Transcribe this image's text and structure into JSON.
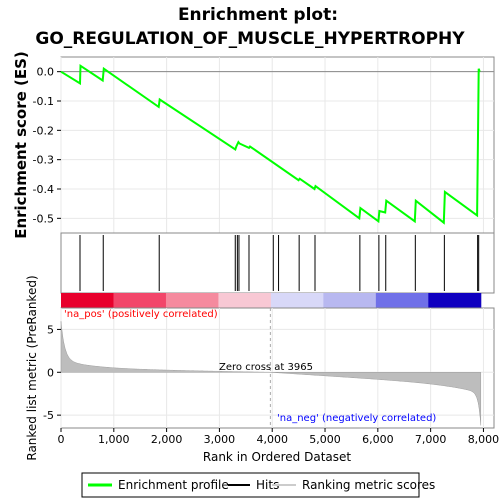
{
  "chart_data": {
    "type": "line",
    "title_line1": "Enrichment plot:",
    "title_line2": "GO_REGULATION_OF_MUSCLE_HYPERTROPHY",
    "es_panel": {
      "ylabel": "Enrichment score (ES)",
      "ylim": [
        -0.55,
        0.05
      ],
      "yticks": [
        0.0,
        -0.1,
        -0.2,
        -0.3,
        -0.4,
        -0.5
      ],
      "ytick_labels": [
        "0.0",
        "-0.1",
        "-0.2",
        "-0.3",
        "-0.4",
        "-0.5"
      ],
      "series_name": "Enrichment profile",
      "color": "#00ff00",
      "x": [
        0,
        360,
        370,
        790,
        810,
        1850,
        1870,
        3300,
        3320,
        3360,
        3380,
        3560,
        3580,
        4500,
        4520,
        4800,
        4820,
        5650,
        5670,
        6010,
        6030,
        6140,
        6160,
        6700,
        6720,
        7250,
        7270,
        7880,
        7895,
        7910,
        7930
      ],
      "y": [
        0.0,
        -0.04,
        0.02,
        -0.03,
        0.01,
        -0.12,
        -0.095,
        -0.265,
        -0.255,
        -0.24,
        -0.245,
        -0.26,
        -0.255,
        -0.37,
        -0.365,
        -0.4,
        -0.39,
        -0.5,
        -0.465,
        -0.51,
        -0.475,
        -0.48,
        -0.44,
        -0.51,
        -0.44,
        -0.515,
        -0.41,
        -0.49,
        -0.25,
        0.01,
        0.0
      ]
    },
    "hits": [
      360,
      800,
      1860,
      3300,
      3340,
      3370,
      3560,
      4020,
      4120,
      4510,
      4810,
      5660,
      6020,
      6150,
      6710,
      7260,
      7890,
      7910
    ],
    "ranking_bar": {
      "segment_colors": [
        "#e8002c",
        "#f2466a",
        "#f58a9e",
        "#f8c8d4",
        "#d8d8f8",
        "#b8b8f0",
        "#7070e8",
        "#1000c0"
      ]
    },
    "metric_panel": {
      "ylabel": "Ranked list metric (PreRanked)",
      "ylim": [
        -6.5,
        7.5
      ],
      "yticks": [
        5,
        0,
        -5
      ],
      "ytick_labels": [
        "5",
        "0",
        "-5"
      ],
      "label_pos": "'na_pos' (positively correlated)",
      "label_neg": "'na_neg' (negatively correlated)",
      "zero_cross_label": "Zero cross at 3965",
      "zero_cross": 3965,
      "color_pos": "#ff0000",
      "color_neg": "#0000ff"
    },
    "x_axis": {
      "xlabel": "Rank in Ordered Dataset",
      "xlim": [
        0,
        8200
      ],
      "xticks": [
        0,
        1000,
        2000,
        3000,
        4000,
        5000,
        6000,
        7000,
        8000
      ],
      "xtick_labels": [
        "0",
        "1,000",
        "2,000",
        "3,000",
        "4,000",
        "5,000",
        "6,000",
        "7,000",
        "8,000"
      ],
      "n_genes": 7950
    },
    "legend": {
      "items": [
        {
          "label": "Enrichment profile",
          "color": "#00ff00"
        },
        {
          "label": "Hits",
          "color": "#000000"
        },
        {
          "label": "Ranking metric scores",
          "color": "#cccccc"
        }
      ]
    }
  }
}
